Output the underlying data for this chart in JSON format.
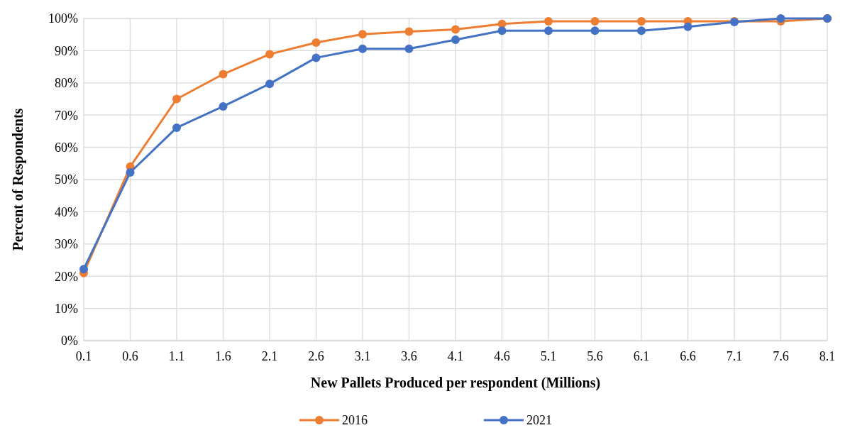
{
  "chart_data": {
    "type": "line",
    "xlabel": "New Pallets Produced per respondent (Millions)",
    "ylabel": "Percent of Respondents",
    "categories": [
      "0.1",
      "0.6",
      "1.1",
      "1.6",
      "2.1",
      "2.6",
      "3.1",
      "3.6",
      "4.1",
      "4.6",
      "5.1",
      "5.6",
      "6.1",
      "6.6",
      "7.1",
      "7.6",
      "8.1"
    ],
    "series": [
      {
        "name": "2016",
        "color": "#ed7d31",
        "values": [
          21,
          54,
          75,
          82.7,
          88.9,
          92.5,
          95.1,
          95.9,
          96.6,
          98.3,
          99.1,
          99.1,
          99.1,
          99.1,
          99.1,
          99.1,
          100
        ]
      },
      {
        "name": "2021",
        "color": "#4472c4",
        "values": [
          22.2,
          52.2,
          66.1,
          72.7,
          79.7,
          87.8,
          90.6,
          90.6,
          93.4,
          96.2,
          96.2,
          96.2,
          96.2,
          97.4,
          98.9,
          100,
          100
        ]
      }
    ],
    "ylim": [
      0,
      100
    ],
    "yticks": [
      {
        "value": 0,
        "label": "0%"
      },
      {
        "value": 10,
        "label": "10%"
      },
      {
        "value": 20,
        "label": "20%"
      },
      {
        "value": 30,
        "label": "30%"
      },
      {
        "value": 40,
        "label": "40%"
      },
      {
        "value": 50,
        "label": "50%"
      },
      {
        "value": 60,
        "label": "60%"
      },
      {
        "value": 70,
        "label": "70%"
      },
      {
        "value": 80,
        "label": "80%"
      },
      {
        "value": 90,
        "label": "90%"
      },
      {
        "value": 100,
        "label": "100%"
      }
    ],
    "grid": true,
    "legend": "bottom",
    "marker": "circle",
    "line_style": "solid"
  }
}
